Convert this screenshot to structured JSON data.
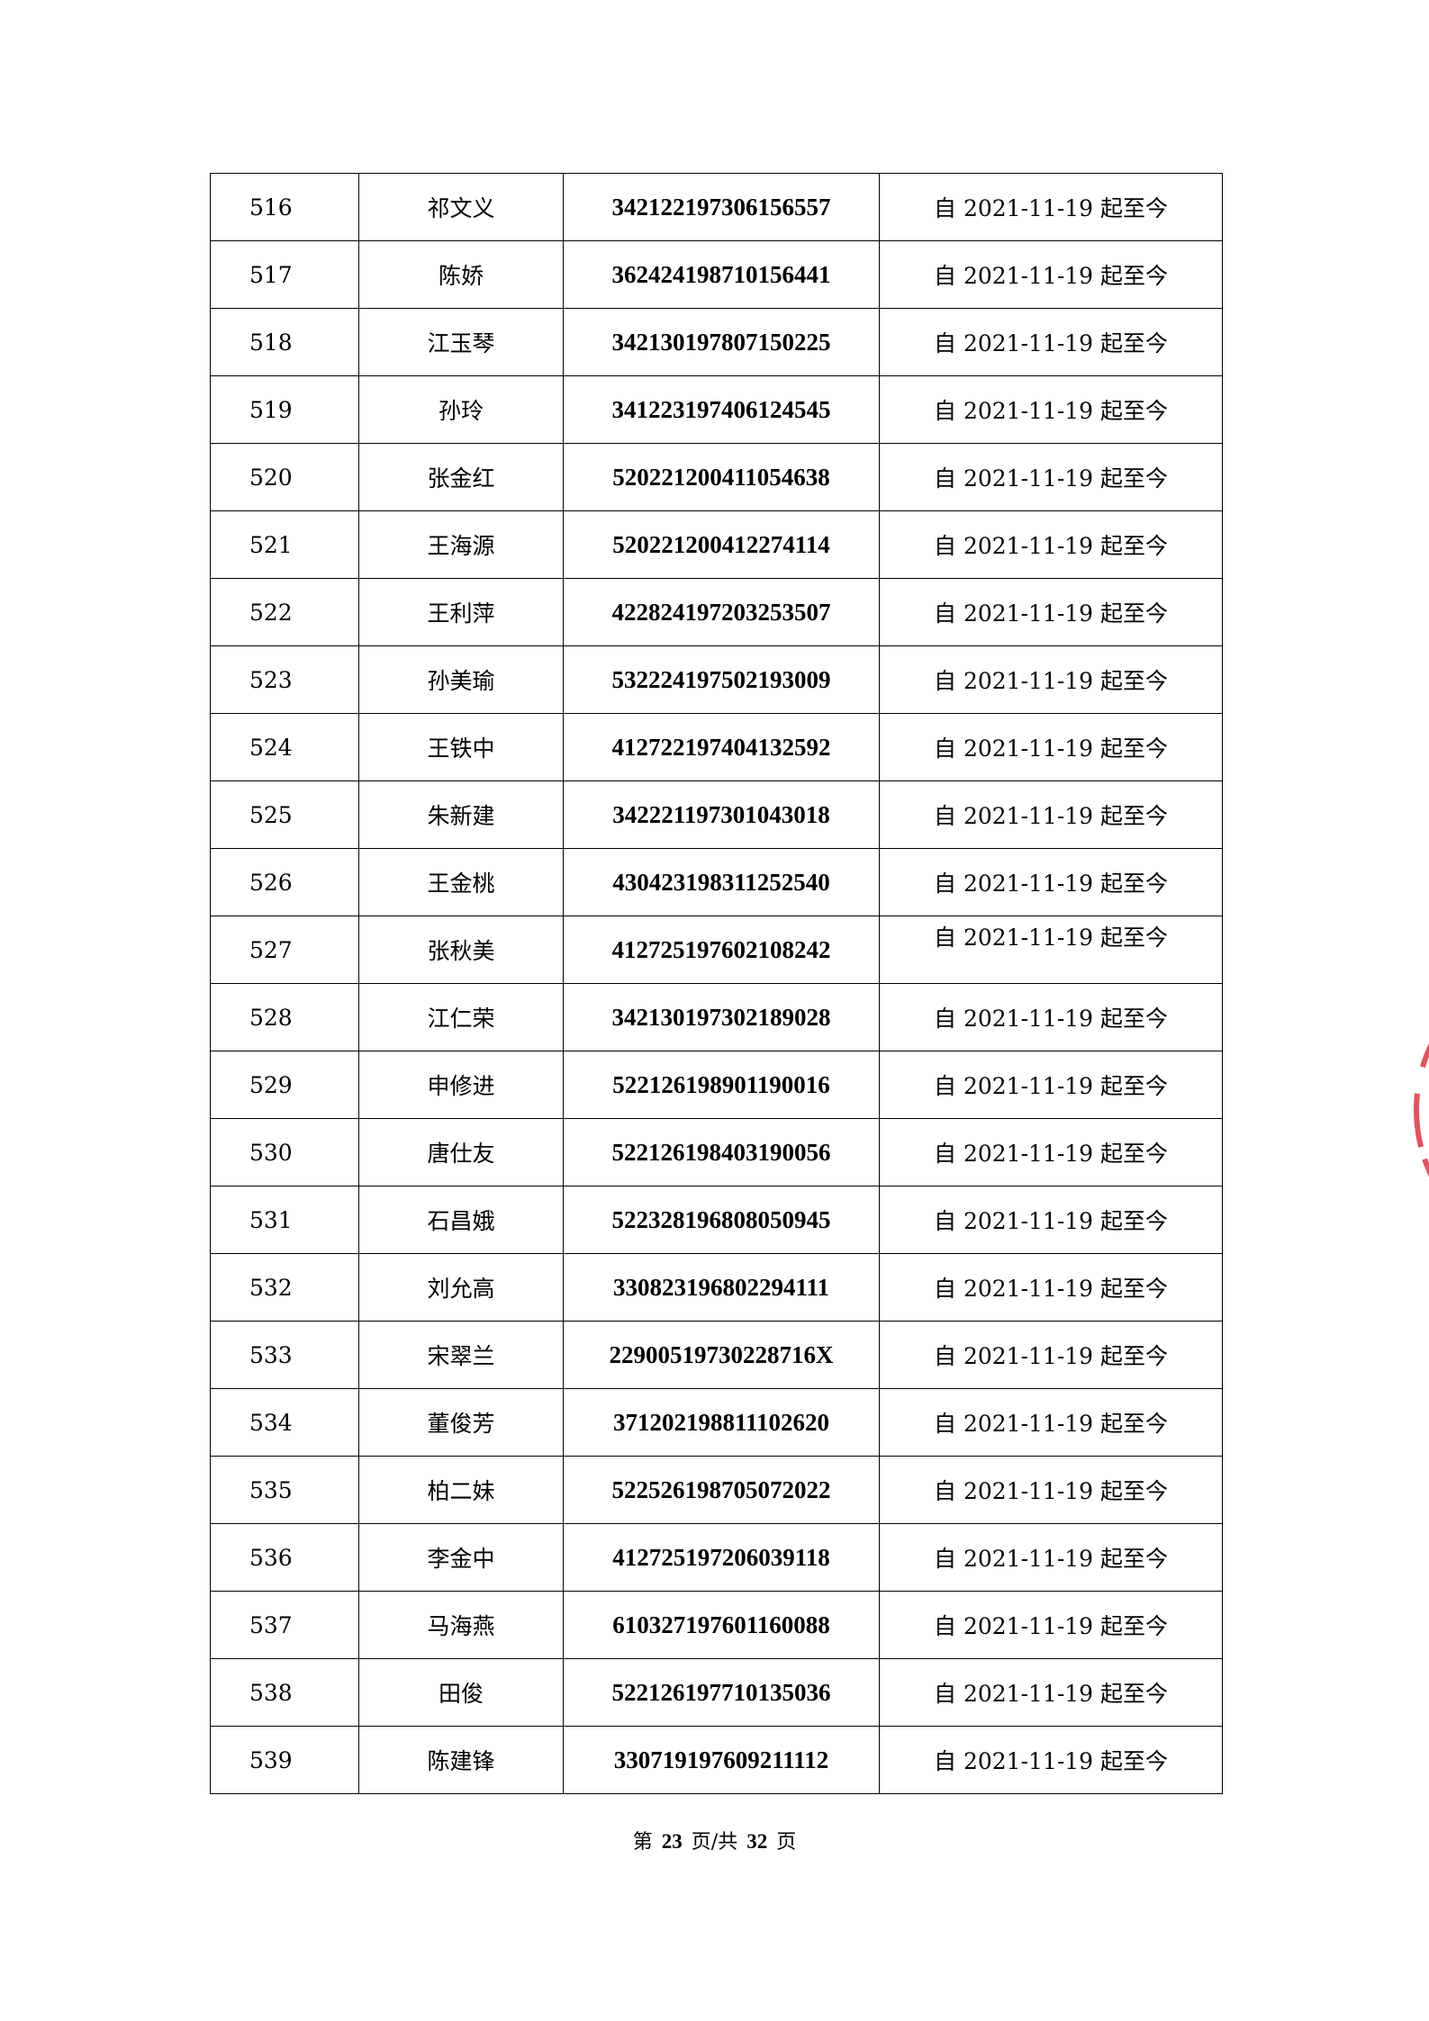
{
  "rows": [
    {
      "no": "516",
      "name": "祁文义",
      "id": "342122197306156557",
      "date": "自 2021-11-19 起至今"
    },
    {
      "no": "517",
      "name": "陈娇",
      "id": "362424198710156441",
      "date": "自 2021-11-19 起至今"
    },
    {
      "no": "518",
      "name": "江玉琴",
      "id": "342130197807150225",
      "date": "自 2021-11-19 起至今"
    },
    {
      "no": "519",
      "name": "孙玲",
      "id": "341223197406124545",
      "date": "自 2021-11-19 起至今"
    },
    {
      "no": "520",
      "name": "张金红",
      "id": "520221200411054638",
      "date": "自 2021-11-19 起至今"
    },
    {
      "no": "521",
      "name": "王海源",
      "id": "520221200412274114",
      "date": "自 2021-11-19 起至今"
    },
    {
      "no": "522",
      "name": "王利萍",
      "id": "422824197203253507",
      "date": "自 2021-11-19 起至今"
    },
    {
      "no": "523",
      "name": "孙美瑜",
      "id": "532224197502193009",
      "date": "自 2021-11-19 起至今"
    },
    {
      "no": "524",
      "name": "王铁中",
      "id": "412722197404132592",
      "date": "自 2021-11-19 起至今"
    },
    {
      "no": "525",
      "name": "朱新建",
      "id": "342221197301043018",
      "date": "自 2021-11-19 起至今"
    },
    {
      "no": "526",
      "name": "王金桃",
      "id": "430423198311252540",
      "date": "自 2021-11-19 起至今"
    },
    {
      "no": "527",
      "name": "张秋美",
      "id": "412725197602108242",
      "date": "自 2021-11-19 起至今"
    },
    {
      "no": "528",
      "name": "江仁荣",
      "id": "342130197302189028",
      "date": "自 2021-11-19 起至今"
    },
    {
      "no": "529",
      "name": "申修进",
      "id": "522126198901190016",
      "date": "自 2021-11-19 起至今"
    },
    {
      "no": "530",
      "name": "唐仕友",
      "id": "522126198403190056",
      "date": "自 2021-11-19 起至今"
    },
    {
      "no": "531",
      "name": "石昌娥",
      "id": "522328196808050945",
      "date": "自 2021-11-19 起至今"
    },
    {
      "no": "532",
      "name": "刘允高",
      "id": "330823196802294111",
      "date": "自 2021-11-19 起至今"
    },
    {
      "no": "533",
      "name": "宋翠兰",
      "id": "22900519730228716X",
      "date": "自 2021-11-19 起至今"
    },
    {
      "no": "534",
      "name": "董俊芳",
      "id": "371202198811102620",
      "date": "自 2021-11-19 起至今"
    },
    {
      "no": "535",
      "name": "柏二妹",
      "id": "522526198705072022",
      "date": "自 2021-11-19 起至今"
    },
    {
      "no": "536",
      "name": "李金中",
      "id": "412725197206039118",
      "date": "自 2021-11-19 起至今"
    },
    {
      "no": "537",
      "name": "马海燕",
      "id": "610327197601160088",
      "date": "自 2021-11-19 起至今"
    },
    {
      "no": "538",
      "name": "田俊",
      "id": "522126197710135036",
      "date": "自 2021-11-19 起至今"
    },
    {
      "no": "539",
      "name": "陈建锋",
      "id": "330719197609211112",
      "date": "自 2021-11-19 起至今"
    }
  ],
  "footer": {
    "prefix": "第",
    "page": "23",
    "middle": "页/共",
    "total": "32",
    "suffix": "页"
  },
  "stamp_color": "#d9283a"
}
